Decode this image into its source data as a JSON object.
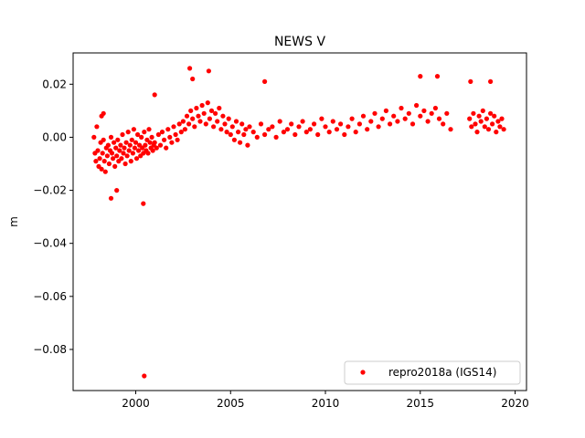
{
  "chart_data": {
    "type": "scatter",
    "title": "NEWS V",
    "xlabel": "",
    "ylabel": "m",
    "xlim": [
      1996.7,
      2020.6
    ],
    "ylim": [
      -0.0955,
      0.0318
    ],
    "x_ticks": [
      2000,
      2005,
      2010,
      2015,
      2020
    ],
    "x_tick_labels": [
      "2000",
      "2005",
      "2010",
      "2015",
      "2020"
    ],
    "y_ticks": [
      -0.08,
      -0.06,
      -0.04,
      -0.02,
      0.0,
      0.02
    ],
    "y_tick_labels": [
      "−0.08",
      "−0.06",
      "−0.04",
      "−0.02",
      "0.00",
      "0.02"
    ],
    "grid": false,
    "legend": {
      "position": "lower-right"
    },
    "series": [
      {
        "name": "repro2018a (IGS14)",
        "color": "#ff0000",
        "marker": "circle",
        "x": [
          1997.8,
          1997.85,
          1997.9,
          1997.95,
          1998.0,
          1998.05,
          1998.1,
          1998.15,
          1998.2,
          1998.25,
          1998.3,
          1998.35,
          1998.4,
          1998.45,
          1998.5,
          1998.55,
          1998.6,
          1998.65,
          1998.7,
          1998.75,
          1998.8,
          1998.85,
          1998.9,
          1998.95,
          1999.0,
          1999.05,
          1999.1,
          1999.15,
          1999.2,
          1999.25,
          1999.3,
          1999.35,
          1999.4,
          1999.45,
          1999.5,
          1999.55,
          1999.6,
          1999.65,
          1999.7,
          1999.75,
          1999.8,
          1999.85,
          1999.9,
          1999.95,
          2000.0,
          2000.05,
          2000.1,
          2000.15,
          2000.2,
          2000.25,
          2000.3,
          2000.35,
          2000.4,
          2000.45,
          2000.5,
          2000.55,
          2000.6,
          2000.65,
          2000.7,
          2000.75,
          2000.8,
          2000.85,
          2000.9,
          2000.95,
          2001.0,
          2001.1,
          2001.2,
          2001.3,
          2001.4,
          2001.5,
          2001.6,
          2001.7,
          2001.8,
          2001.9,
          2002.0,
          2002.1,
          2002.2,
          2002.3,
          2002.4,
          2002.5,
          2002.6,
          2002.7,
          2002.8,
          2002.9,
          2003.0,
          2003.1,
          2003.2,
          2003.3,
          2003.4,
          2003.5,
          2003.6,
          2003.7,
          2003.8,
          2003.9,
          2004.0,
          2004.1,
          2004.2,
          2004.3,
          2004.4,
          2004.5,
          2004.6,
          2004.7,
          2004.8,
          2004.9,
          2005.0,
          2005.1,
          2005.2,
          2005.3,
          2005.4,
          2005.5,
          2005.6,
          2005.7,
          2005.8,
          2005.9,
          2006.0,
          2006.2,
          2006.4,
          2006.6,
          2006.8,
          2007.0,
          2007.2,
          2007.4,
          2007.6,
          2007.8,
          2008.0,
          2008.2,
          2008.4,
          2008.6,
          2008.8,
          2009.0,
          2009.2,
          2009.4,
          2009.6,
          2009.8,
          2010.0,
          2010.2,
          2010.4,
          2010.6,
          2010.8,
          2011.0,
          2011.2,
          2011.4,
          2011.6,
          2011.8,
          2012.0,
          2012.2,
          2012.4,
          2012.6,
          2012.8,
          2013.0,
          2013.2,
          2013.4,
          2013.6,
          2013.8,
          2014.0,
          2014.2,
          2014.4,
          2014.6,
          2014.8,
          2015.0,
          2015.2,
          2015.4,
          2015.6,
          2015.8,
          2016.0,
          2016.2,
          2016.4,
          2016.6,
          2017.6,
          2017.7,
          2017.8,
          2017.9,
          2018.0,
          2018.1,
          2018.2,
          2018.3,
          2018.4,
          2018.5,
          2018.6,
          2018.7,
          2018.8,
          2018.9,
          2019.0,
          2019.1,
          2019.2,
          2019.3,
          2019.4,
          2000.45,
          2000.4,
          1998.7,
          1999.0,
          2002.85,
          2003.85,
          2006.8,
          2015.0,
          2015.9,
          2017.65,
          2018.7,
          1998.2,
          1998.3,
          2001.0,
          2003.0
        ],
        "y": [
          0.0,
          -0.006,
          -0.009,
          0.004,
          -0.005,
          -0.011,
          -0.008,
          -0.002,
          -0.012,
          -0.006,
          -0.001,
          -0.009,
          -0.013,
          -0.004,
          -0.007,
          -0.003,
          -0.01,
          -0.005,
          0.0,
          -0.006,
          -0.008,
          -0.002,
          -0.011,
          -0.004,
          -0.007,
          -0.001,
          -0.009,
          -0.005,
          -0.003,
          -0.008,
          0.001,
          -0.006,
          -0.004,
          -0.01,
          -0.002,
          -0.007,
          0.002,
          -0.005,
          -0.003,
          -0.009,
          -0.001,
          -0.006,
          0.003,
          -0.004,
          -0.002,
          -0.008,
          0.001,
          -0.005,
          -0.003,
          -0.007,
          0.0,
          -0.004,
          -0.006,
          0.002,
          -0.003,
          -0.005,
          -0.001,
          -0.006,
          0.003,
          -0.002,
          -0.004,
          0.0,
          -0.005,
          -0.003,
          -0.002,
          -0.004,
          0.001,
          -0.003,
          0.002,
          -0.001,
          -0.004,
          0.003,
          0.0,
          -0.002,
          0.004,
          0.001,
          -0.001,
          0.005,
          0.002,
          0.006,
          0.003,
          0.008,
          0.005,
          0.01,
          0.007,
          0.004,
          0.011,
          0.008,
          0.006,
          0.012,
          0.009,
          0.005,
          0.013,
          0.007,
          0.01,
          0.004,
          0.009,
          0.006,
          0.011,
          0.003,
          0.008,
          0.005,
          0.002,
          0.007,
          0.001,
          0.004,
          -0.001,
          0.006,
          0.002,
          -0.002,
          0.005,
          0.001,
          0.003,
          -0.003,
          0.004,
          0.002,
          0.0,
          0.005,
          0.001,
          0.003,
          0.004,
          0.0,
          0.006,
          0.002,
          0.003,
          0.005,
          0.001,
          0.004,
          0.006,
          0.002,
          0.003,
          0.005,
          0.001,
          0.007,
          0.004,
          0.002,
          0.006,
          0.003,
          0.005,
          0.001,
          0.004,
          0.007,
          0.002,
          0.005,
          0.008,
          0.003,
          0.006,
          0.009,
          0.004,
          0.007,
          0.01,
          0.005,
          0.008,
          0.006,
          0.011,
          0.007,
          0.009,
          0.005,
          0.012,
          0.008,
          0.01,
          0.006,
          0.009,
          0.011,
          0.007,
          0.005,
          0.009,
          0.003,
          0.007,
          0.004,
          0.009,
          0.005,
          0.002,
          0.008,
          0.006,
          0.01,
          0.004,
          0.007,
          0.003,
          0.009,
          0.005,
          0.008,
          0.002,
          0.006,
          0.004,
          0.007,
          0.003,
          -0.09,
          -0.025,
          -0.023,
          -0.02,
          0.026,
          0.025,
          0.021,
          0.023,
          0.023,
          0.021,
          0.021,
          0.008,
          0.009,
          0.016,
          0.022
        ]
      }
    ]
  }
}
